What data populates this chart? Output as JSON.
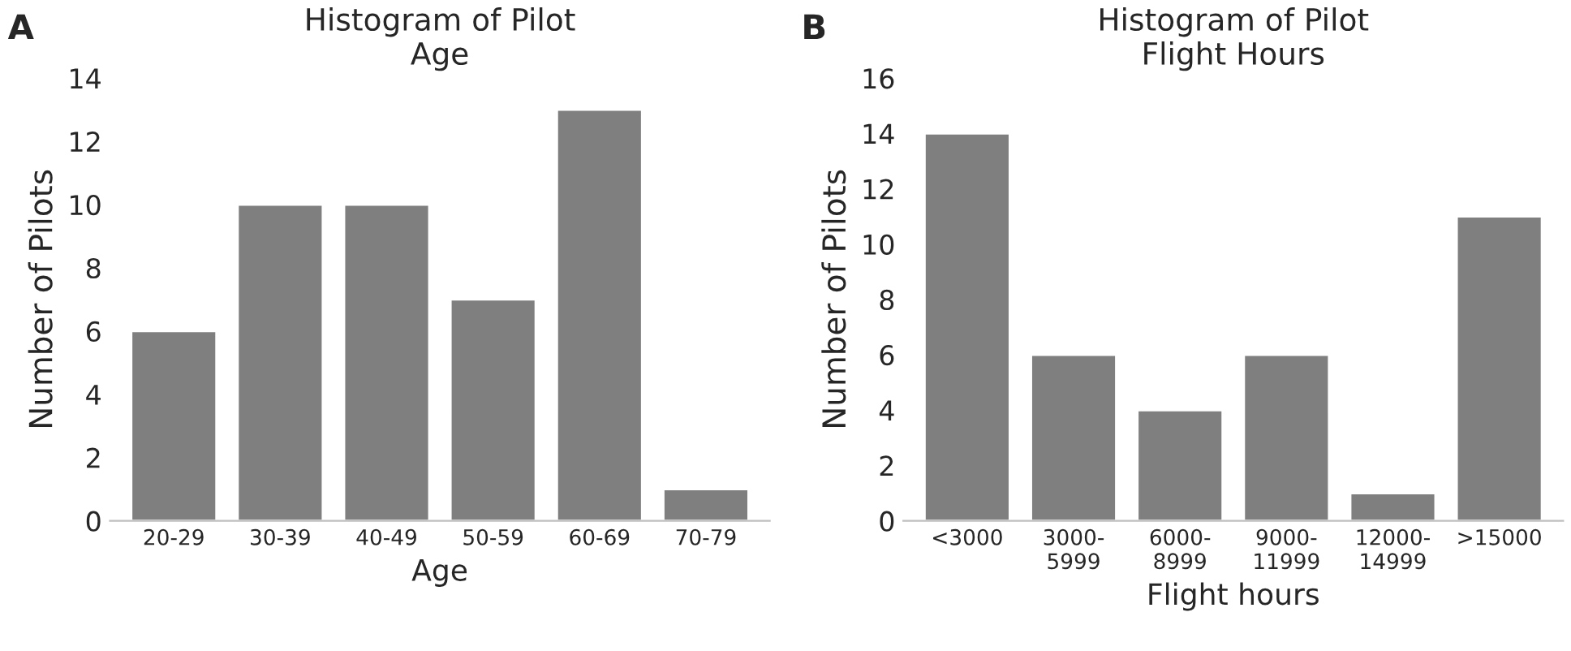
{
  "chart_data": [
    {
      "type": "bar",
      "title": "Histogram of Pilot\nAge",
      "xlabel": "Age",
      "ylabel": "Number of Pilots",
      "annotations": [
        "A"
      ],
      "categories": [
        "20-29",
        "30-39",
        "40-49",
        "50-59",
        "60-69",
        "70-79"
      ],
      "values": [
        6,
        10,
        10,
        7,
        13,
        1
      ],
      "color": "#7f7f7f",
      "ylim": [
        0,
        14
      ],
      "yticks": [
        0,
        2,
        4,
        6,
        8,
        10,
        12,
        14
      ],
      "grid": false,
      "legend": false
    },
    {
      "type": "bar",
      "title": "Histogram of Pilot\nFlight Hours",
      "xlabel": "Flight hours",
      "ylabel": "Number of Pilots",
      "annotations": [
        "B"
      ],
      "categories": [
        "<3000",
        "3000-\n5999",
        "6000-\n8999",
        "9000-\n11999",
        "12000-\n14999",
        ">15000"
      ],
      "values": [
        14,
        6,
        4,
        6,
        1,
        11
      ],
      "color": "#7f7f7f",
      "ylim": [
        0,
        16
      ],
      "yticks": [
        0,
        2,
        4,
        6,
        8,
        10,
        12,
        14,
        16
      ],
      "grid": false,
      "legend": false
    }
  ]
}
